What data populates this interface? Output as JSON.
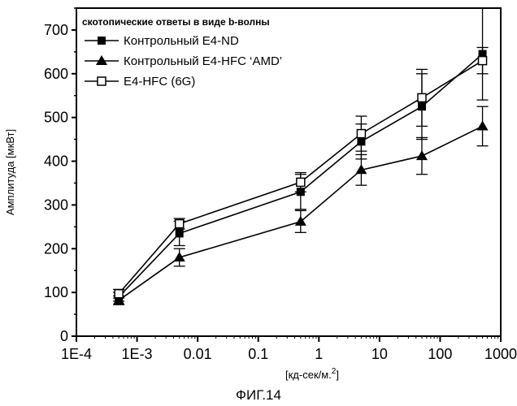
{
  "chart_data": {
    "type": "line",
    "title": "",
    "caption": "ФИГ.14",
    "xlabel": "[кд-сек/м.",
    "xlabel_sup": "2",
    "xlabel_end": "]",
    "ylabel": "Амплитуда [мкВт]",
    "x_scale": "log",
    "xlim": [
      0.0001,
      1000
    ],
    "ylim": [
      0,
      750
    ],
    "x_ticks": [
      0.0001,
      0.001,
      0.01,
      0.1,
      1,
      10,
      100,
      1000
    ],
    "x_tick_labels": [
      "1E-4",
      "1E-3",
      "0.01",
      "0.1",
      "1",
      "10",
      "100",
      "1000"
    ],
    "y_ticks": [
      0,
      100,
      200,
      300,
      400,
      500,
      600,
      700
    ],
    "y_tick_labels": [
      "0",
      "100",
      "200",
      "300",
      "400",
      "500",
      "600",
      "700"
    ],
    "grid": false,
    "legend_position": "top-left",
    "legend_title": "скотопические ответы в виде b-волны",
    "x": [
      0.0005,
      0.005,
      0.5,
      5,
      50,
      500
    ],
    "series": [
      {
        "name": "Контрольный E4-ND",
        "marker": "filled-square",
        "values": [
          90,
          235,
          330,
          445,
          525,
          645
        ],
        "error": [
          10,
          28,
          40,
          40,
          75,
          105
        ]
      },
      {
        "name": "Контрольный E4-HFC ‘AMD’",
        "marker": "filled-triangle",
        "values": [
          82,
          180,
          262,
          380,
          412,
          480
        ],
        "error": [
          10,
          20,
          25,
          35,
          42,
          45
        ]
      },
      {
        "name": "E4-HFC (6G)",
        "marker": "open-square",
        "values": [
          97,
          257,
          352,
          463,
          545,
          630
        ],
        "error": [
          10,
          12,
          22,
          40,
          65,
          30
        ]
      }
    ]
  }
}
